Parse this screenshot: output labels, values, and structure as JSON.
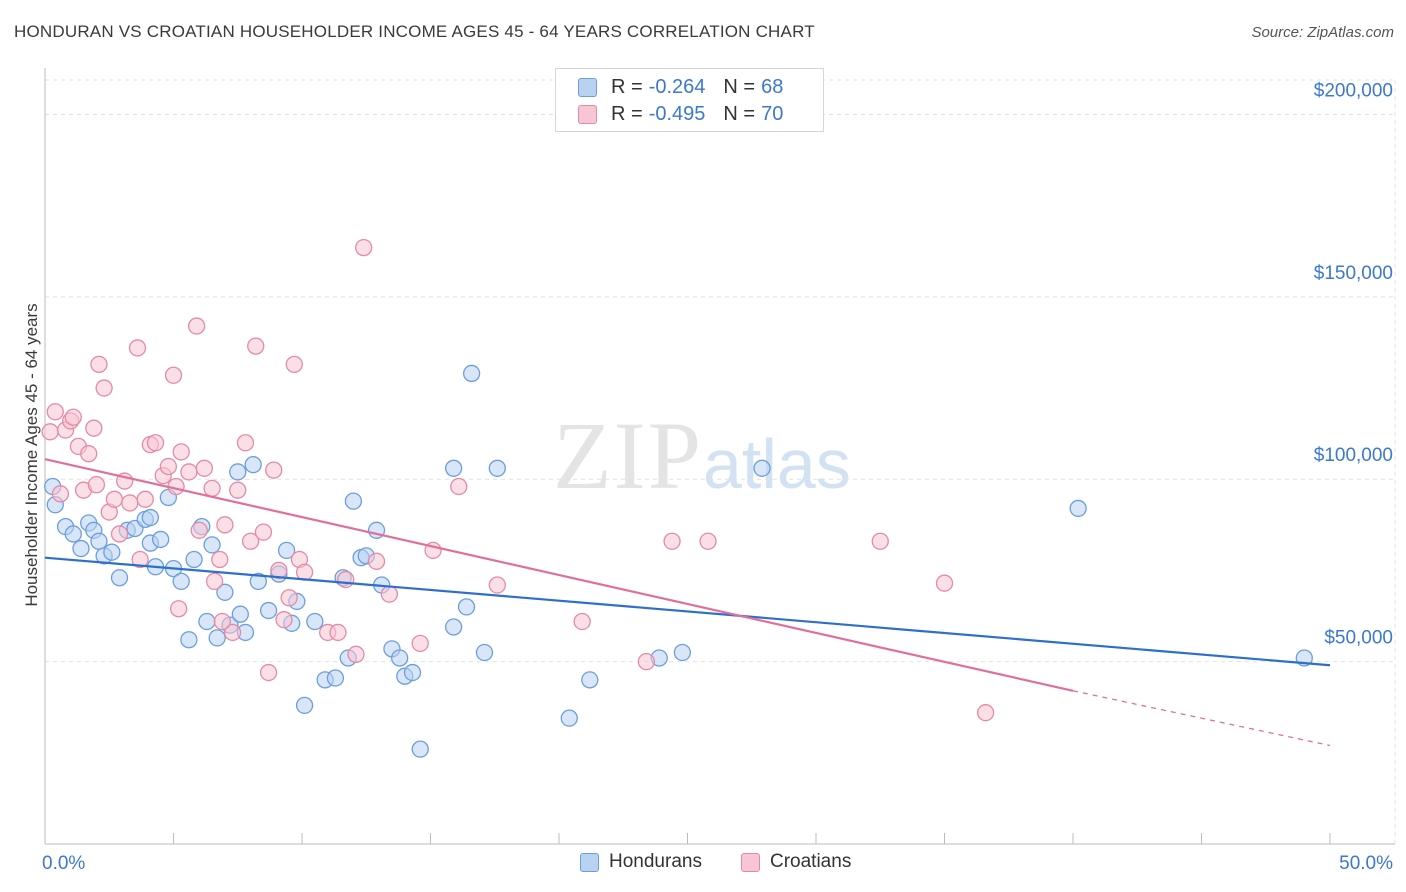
{
  "chart_data": {
    "type": "scatter",
    "title": "HONDURAN VS CROATIAN HOUSEHOLDER INCOME AGES 45 - 64 YEARS CORRELATION CHART",
    "source": "Source: ZipAtlas.com",
    "ylabel": "Householder Income Ages 45 - 64 years",
    "xlim": [
      0,
      50
    ],
    "ylim": [
      0,
      210000
    ],
    "y_ticks": [
      {
        "value": 50000,
        "label": "$50,000"
      },
      {
        "value": 100000,
        "label": "$100,000"
      },
      {
        "value": 150000,
        "label": "$150,000"
      },
      {
        "value": 200000,
        "label": "$200,000"
      }
    ],
    "x_tick_labels": {
      "min": "0.0%",
      "max": "50.0%"
    },
    "grid": true,
    "legend_stats": [
      {
        "r_label": "R =",
        "r_value": "-0.264",
        "n_label": "N =",
        "n_value": "68"
      },
      {
        "r_label": "R =",
        "r_value": "-0.495",
        "n_label": "N =",
        "n_value": "70"
      }
    ],
    "series": [
      {
        "name": "Hondurans",
        "color": "#6a9fdd",
        "fill": "#b9d2f2",
        "trend": {
          "x0": 0,
          "y0": 78500,
          "x1": 50,
          "y1": 49000
        },
        "points": [
          [
            0.3,
            98000
          ],
          [
            0.4,
            93000
          ],
          [
            0.8,
            87000
          ],
          [
            1.1,
            85000
          ],
          [
            1.4,
            81000
          ],
          [
            1.7,
            88000
          ],
          [
            1.9,
            86000
          ],
          [
            2.1,
            83000
          ],
          [
            2.3,
            79000
          ],
          [
            2.6,
            80000
          ],
          [
            2.9,
            73000
          ],
          [
            3.2,
            86000
          ],
          [
            3.5,
            86500
          ],
          [
            3.9,
            89000
          ],
          [
            4.1,
            82500
          ],
          [
            4.5,
            83500
          ],
          [
            4.3,
            76000
          ],
          [
            4.8,
            95000
          ],
          [
            5.0,
            75500
          ],
          [
            5.3,
            72000
          ],
          [
            5.6,
            56000
          ],
          [
            5.8,
            78000
          ],
          [
            6.1,
            87000
          ],
          [
            6.3,
            61000
          ],
          [
            6.5,
            82000
          ],
          [
            6.7,
            56500
          ],
          [
            7.0,
            69000
          ],
          [
            7.2,
            60000
          ],
          [
            7.6,
            63000
          ],
          [
            7.8,
            58000
          ],
          [
            7.5,
            102000
          ],
          [
            8.1,
            104000
          ],
          [
            8.3,
            72000
          ],
          [
            8.7,
            64000
          ],
          [
            9.1,
            74000
          ],
          [
            9.4,
            80500
          ],
          [
            9.6,
            60500
          ],
          [
            9.8,
            66500
          ],
          [
            10.1,
            38000
          ],
          [
            10.5,
            61000
          ],
          [
            10.9,
            45000
          ],
          [
            11.3,
            45500
          ],
          [
            11.6,
            73000
          ],
          [
            11.8,
            51000
          ],
          [
            12.0,
            94000
          ],
          [
            12.3,
            78500
          ],
          [
            12.9,
            86000
          ],
          [
            13.1,
            71000
          ],
          [
            13.5,
            53500
          ],
          [
            13.8,
            51000
          ],
          [
            14.0,
            46000
          ],
          [
            14.3,
            47000
          ],
          [
            14.6,
            26000
          ],
          [
            15.9,
            103000
          ],
          [
            15.9,
            59500
          ],
          [
            16.4,
            65000
          ],
          [
            16.6,
            129000
          ],
          [
            17.1,
            52500
          ],
          [
            17.6,
            103000
          ],
          [
            20.4,
            34500
          ],
          [
            21.2,
            45000
          ],
          [
            23.9,
            51000
          ],
          [
            24.8,
            52500
          ],
          [
            27.9,
            103000
          ],
          [
            40.2,
            92000
          ],
          [
            49.0,
            51000
          ],
          [
            4.1,
            89500
          ],
          [
            12.5,
            79000
          ]
        ]
      },
      {
        "name": "Croatians",
        "color": "#e58aa6",
        "fill": "#f7c5d4",
        "trend": {
          "x0": 0,
          "y0": 105500,
          "x1": 40,
          "y1": 42000,
          "dash_to_x": 50,
          "dash_to_y": 27000
        },
        "points": [
          [
            0.2,
            113000
          ],
          [
            0.4,
            118500
          ],
          [
            0.6,
            96000
          ],
          [
            0.8,
            113500
          ],
          [
            1.0,
            116000
          ],
          [
            1.1,
            117000
          ],
          [
            1.3,
            109000
          ],
          [
            1.5,
            97000
          ],
          [
            1.7,
            107000
          ],
          [
            1.9,
            114000
          ],
          [
            2.0,
            98500
          ],
          [
            2.1,
            131500
          ],
          [
            2.3,
            125000
          ],
          [
            2.5,
            91000
          ],
          [
            2.7,
            94500
          ],
          [
            2.9,
            85000
          ],
          [
            3.1,
            99500
          ],
          [
            3.3,
            93500
          ],
          [
            3.6,
            136000
          ],
          [
            3.9,
            94500
          ],
          [
            4.1,
            109500
          ],
          [
            4.3,
            110000
          ],
          [
            4.6,
            101000
          ],
          [
            4.8,
            103500
          ],
          [
            5.1,
            98000
          ],
          [
            5.0,
            128500
          ],
          [
            5.3,
            107500
          ],
          [
            5.6,
            102000
          ],
          [
            5.9,
            142000
          ],
          [
            6.0,
            86000
          ],
          [
            6.2,
            103000
          ],
          [
            6.5,
            97500
          ],
          [
            6.6,
            72000
          ],
          [
            6.8,
            78000
          ],
          [
            7.0,
            87500
          ],
          [
            7.3,
            58000
          ],
          [
            7.5,
            97000
          ],
          [
            7.8,
            110000
          ],
          [
            8.0,
            83000
          ],
          [
            8.2,
            136500
          ],
          [
            8.5,
            85500
          ],
          [
            8.7,
            47000
          ],
          [
            8.9,
            102500
          ],
          [
            9.1,
            75000
          ],
          [
            9.3,
            61500
          ],
          [
            9.5,
            67500
          ],
          [
            9.7,
            131500
          ],
          [
            9.9,
            78000
          ],
          [
            10.1,
            74500
          ],
          [
            11.0,
            58000
          ],
          [
            11.4,
            58000
          ],
          [
            11.7,
            72500
          ],
          [
            12.1,
            52000
          ],
          [
            12.4,
            163500
          ],
          [
            12.9,
            77500
          ],
          [
            13.4,
            68500
          ],
          [
            14.6,
            55000
          ],
          [
            15.1,
            80500
          ],
          [
            16.1,
            98000
          ],
          [
            17.6,
            71000
          ],
          [
            20.9,
            61000
          ],
          [
            23.4,
            50000
          ],
          [
            24.4,
            83000
          ],
          [
            25.8,
            83000
          ],
          [
            32.5,
            83000
          ],
          [
            35.0,
            71500
          ],
          [
            36.6,
            36000
          ],
          [
            3.7,
            78000
          ],
          [
            5.2,
            64500
          ],
          [
            6.9,
            61000
          ]
        ]
      }
    ],
    "watermark": {
      "zip": "ZIP",
      "atlas": "atlas"
    }
  }
}
